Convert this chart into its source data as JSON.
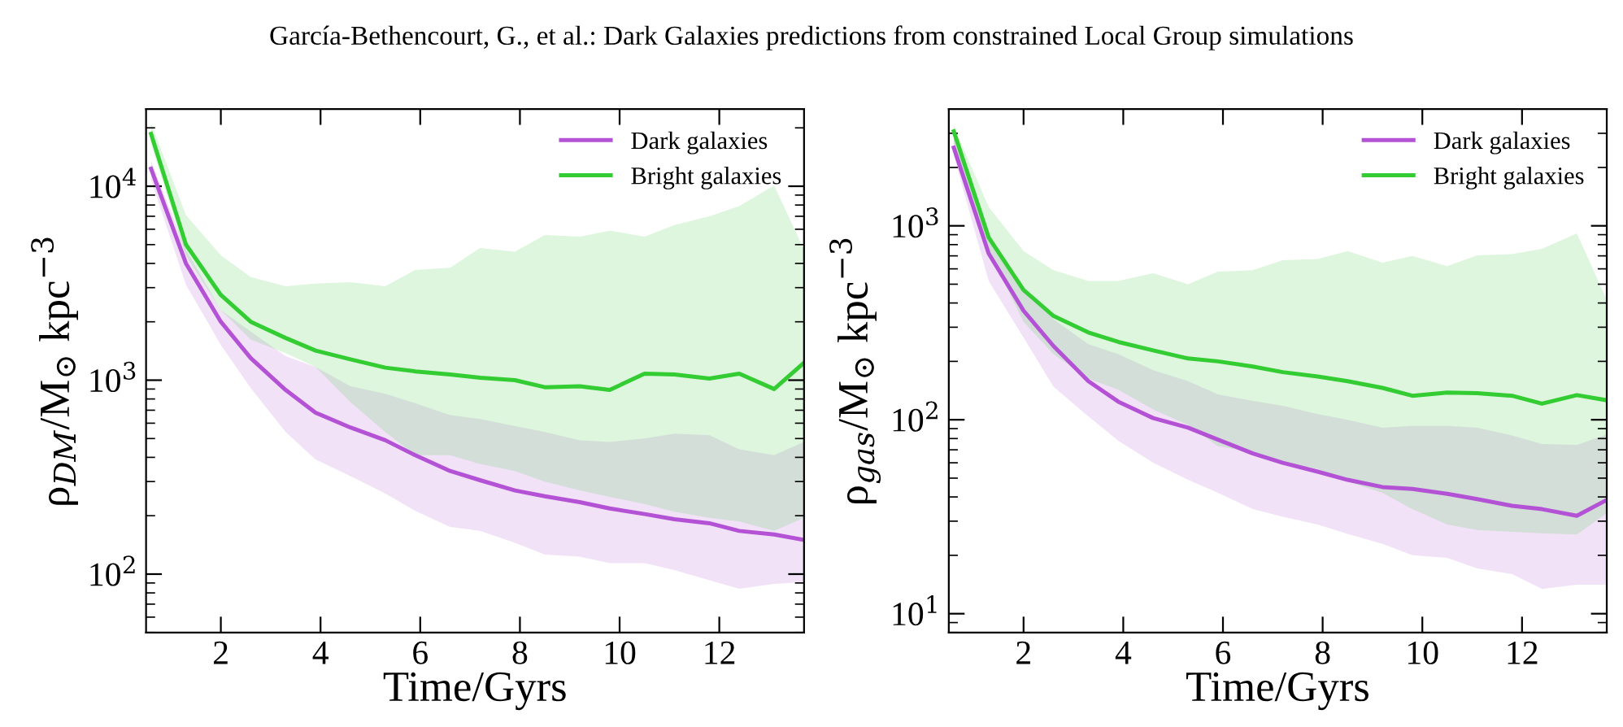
{
  "chart_data": [
    {
      "type": "line",
      "annotations": [
        "García-Bethencourt, G., et al.: Dark Galaxies predictions from constrained Local Group simulations"
      ],
      "xlabel": "Time/Gyrs",
      "ylabel": "ρ$_{DM}$/M$_{⊙}$ kpc$^{−3}$",
      "log": "y",
      "legend": "top right",
      "grid": false,
      "x": [
        0.6,
        1.3,
        2.0,
        2.6,
        3.3,
        3.9,
        4.6,
        5.3,
        5.9,
        6.6,
        7.2,
        7.9,
        8.5,
        9.2,
        9.8,
        10.5,
        11.1,
        11.8,
        12.4,
        13.1,
        13.7
      ],
      "xlim": [
        0.5,
        13.7
      ],
      "xticks": [
        2,
        4,
        6,
        8,
        10,
        12
      ],
      "ylim": [
        50,
        25000
      ],
      "yticks": [
        {
          "value": 100,
          "label": "10$^{2}$"
        },
        {
          "value": 1000,
          "label": "10$^{3}$"
        },
        {
          "value": 10000,
          "label": "10$^{4}$"
        }
      ],
      "series": [
        {
          "name": "Dark galaxies",
          "color": "#b452d6",
          "values": [
            12300,
            4000,
            2000,
            1300,
            890,
            680,
            570,
            490,
            410,
            340,
            305,
            270,
            252,
            235,
            218,
            204,
            192,
            183,
            167,
            160,
            150
          ],
          "lower": [
            10800,
            3100,
            1520,
            910,
            540,
            390,
            320,
            260,
            212,
            175,
            167,
            145,
            126,
            123,
            114,
            114,
            105,
            93,
            84,
            89,
            91
          ],
          "upper": [
            13500,
            4700,
            2300,
            1780,
            1330,
            1170,
            930,
            850,
            760,
            660,
            630,
            580,
            540,
            490,
            480,
            500,
            530,
            520,
            440,
            410,
            480
          ]
        },
        {
          "name": "Bright galaxies",
          "color": "#33cc33",
          "values": [
            18600,
            5000,
            2750,
            2000,
            1650,
            1420,
            1280,
            1160,
            1110,
            1070,
            1030,
            1000,
            920,
            930,
            890,
            1080,
            1070,
            1020,
            1080,
            900,
            1230
          ],
          "lower": [
            16500,
            4400,
            2300,
            1620,
            1380,
            1170,
            770,
            540,
            410,
            410,
            370,
            340,
            300,
            270,
            250,
            230,
            210,
            195,
            187,
            167,
            195
          ],
          "upper": [
            21200,
            7100,
            4400,
            3400,
            3050,
            3150,
            3200,
            3050,
            3700,
            3800,
            4800,
            4600,
            5600,
            5500,
            5900,
            5500,
            6300,
            7000,
            7900,
            10100,
            4700
          ]
        }
      ]
    },
    {
      "type": "line",
      "xlabel": "Time/Gyrs",
      "ylabel": "ρ$_{gas}$/M$_{⊙}$ kpc$^{−3}$",
      "log": "y",
      "legend": "top right",
      "grid": false,
      "x": [
        0.6,
        1.3,
        2.0,
        2.6,
        3.3,
        3.9,
        4.6,
        5.3,
        5.9,
        6.6,
        7.2,
        7.9,
        8.5,
        9.2,
        9.8,
        10.5,
        11.1,
        11.8,
        12.4,
        13.1,
        13.7
      ],
      "xlim": [
        0.5,
        13.7
      ],
      "xticks": [
        2,
        4,
        6,
        8,
        10,
        12
      ],
      "ylim": [
        8,
        4000
      ],
      "yticks": [
        {
          "value": 10,
          "label": "10$^{1}$"
        },
        {
          "value": 100,
          "label": "10$^{2}$"
        },
        {
          "value": 1000,
          "label": "10$^{3}$"
        }
      ],
      "series": [
        {
          "name": "Dark galaxies",
          "color": "#b452d6",
          "values": [
            2530,
            720,
            365,
            240,
            158,
            124,
            102,
            91,
            79,
            67,
            60,
            54,
            49,
            45,
            44,
            41.5,
            39,
            36,
            34.6,
            32,
            38.6
          ],
          "lower": [
            2300,
            520,
            265,
            148,
            104,
            78,
            60,
            49,
            42,
            34.6,
            31.6,
            28.8,
            25.8,
            22.9,
            20,
            19.4,
            17.1,
            16,
            13.4,
            14.1,
            14.1
          ],
          "upper": [
            2880,
            870,
            460,
            330,
            245,
            218,
            180,
            158,
            135,
            125,
            118,
            107,
            100,
            91,
            93,
            93,
            91,
            83,
            75,
            74,
            84
          ]
        },
        {
          "name": "Bright galaxies",
          "color": "#33cc33",
          "values": [
            3070,
            870,
            467,
            343,
            282,
            252,
            228,
            207,
            200,
            188,
            176,
            167,
            158,
            146,
            133,
            138,
            137,
            133,
            121,
            134,
            126
          ],
          "lower": [
            2700,
            740,
            320,
            218,
            163,
            143,
            113,
            94,
            73,
            68,
            60,
            56,
            48,
            42,
            34.6,
            28.8,
            27,
            26.4,
            26,
            25.6,
            33
          ],
          "upper": [
            3280,
            1250,
            740,
            590,
            520,
            520,
            570,
            500,
            580,
            590,
            665,
            675,
            740,
            645,
            700,
            620,
            705,
            715,
            760,
            915,
            415
          ]
        }
      ]
    }
  ]
}
